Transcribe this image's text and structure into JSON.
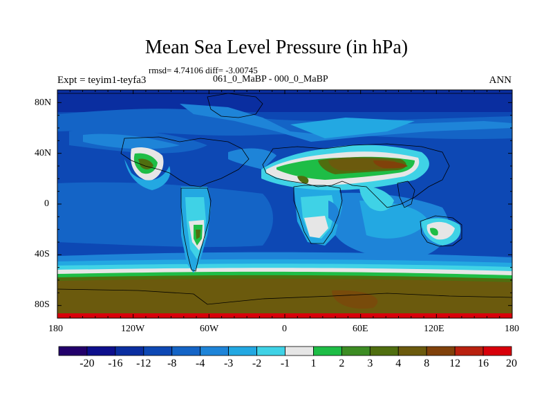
{
  "title": "Mean Sea Level Pressure (in hPa)",
  "stats": "rmsd= 4.74106 diff= -3.00745",
  "expt": "Expt = teyim1-teyfa3",
  "runs": "061_0_MaBP - 000_0_MaBP",
  "season": "ANN",
  "lat_labels": [
    "80N",
    "40N",
    "0",
    "40S",
    "80S"
  ],
  "lon_labels": [
    "180",
    "120W",
    "60W",
    "0",
    "60E",
    "120E",
    "180"
  ],
  "colorbar": {
    "colors": [
      "#23006b",
      "#0d0f8c",
      "#0a2ea0",
      "#0d48b4",
      "#1464c6",
      "#1e84d8",
      "#23a8e2",
      "#3fd2e6",
      "#e6e6e6",
      "#1ebd46",
      "#3c8c23",
      "#4f6e0f",
      "#6b5a0d",
      "#80410a",
      "#b9210f",
      "#d8000a"
    ],
    "labels": [
      "-20",
      "-16",
      "-12",
      "-8",
      "-4",
      "-3",
      "-2",
      "-1",
      "1",
      "2",
      "3",
      "4",
      "8",
      "12",
      "16",
      "20"
    ]
  }
}
